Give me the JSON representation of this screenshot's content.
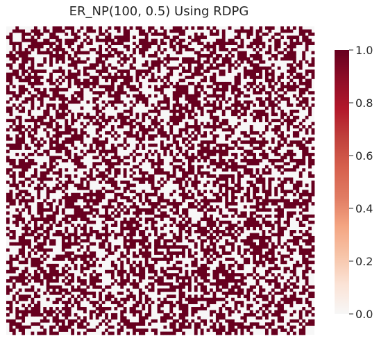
{
  "chart_data": {
    "type": "heatmap",
    "title": "ER_NP(100, 0.5) Using RDPG",
    "xlabel": "",
    "ylabel": "",
    "n_rows": 100,
    "n_cols": 100,
    "edge_probability": 0.5,
    "value_range": [
      0,
      1
    ],
    "colorbar": {
      "ticks": [
        0.0,
        0.2,
        0.4,
        0.6,
        0.8,
        1.0
      ],
      "tick_labels": [
        "0.0",
        "0.2",
        "0.4",
        "0.6",
        "0.8",
        "1.0"
      ],
      "colormap": "RdBu_r (positive half)",
      "color_stops": [
        "#f7f7f7",
        "#fbe3d6",
        "#f7c4a8",
        "#f4a582",
        "#e07b62",
        "#d6604d",
        "#c0413c",
        "#b2182b",
        "#8e0d27",
        "#67001f"
      ]
    },
    "colors": {
      "zero": "#f7f7f7",
      "one": "#67001f"
    },
    "grid": false,
    "legend_placement": "right"
  }
}
